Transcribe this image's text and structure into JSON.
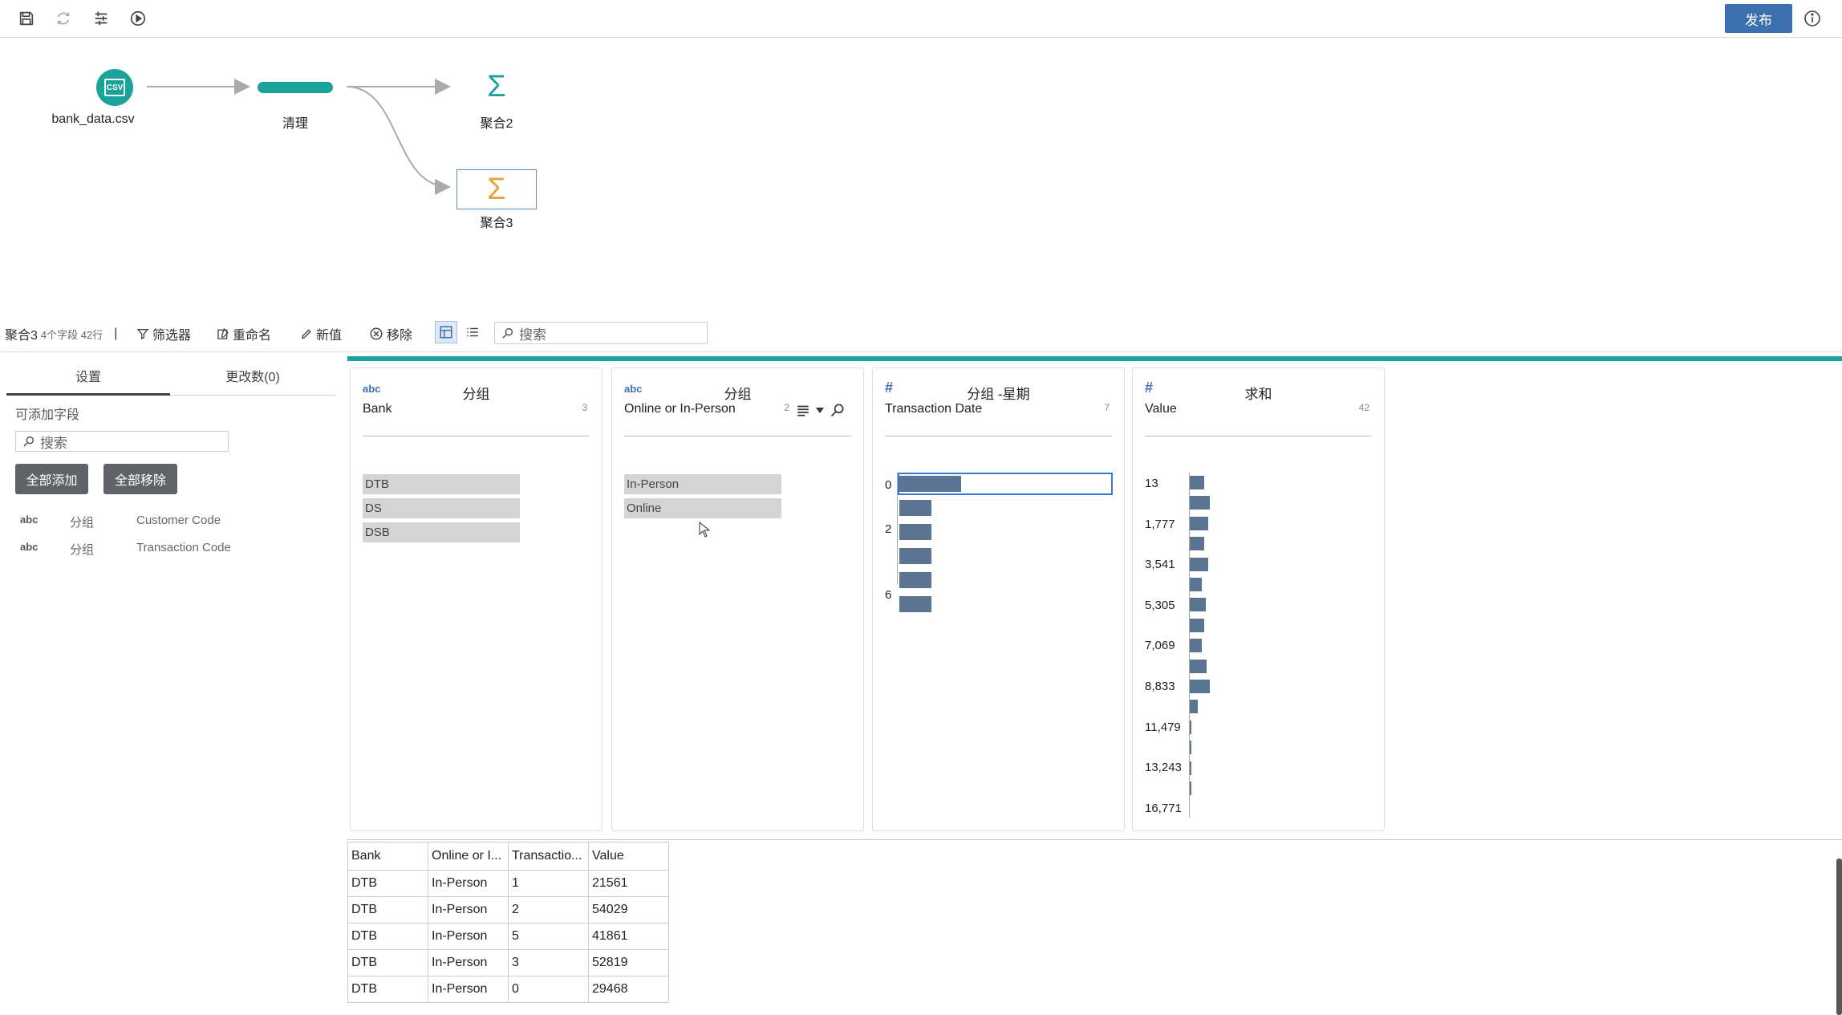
{
  "toolbar": {
    "icons": [
      "save-icon",
      "refresh-icon",
      "settings-sliders-icon",
      "play-icon"
    ],
    "publish_label": "发布"
  },
  "flow": {
    "nodes": [
      {
        "label": "bank_data.csv",
        "icon": "csv-icon"
      },
      {
        "label": "清理",
        "icon": "clean-bar"
      },
      {
        "label": "聚合2",
        "icon": "sigma-icon"
      },
      {
        "label": "聚合3",
        "icon": "sigma-icon"
      }
    ],
    "csv_badge": "CSV"
  },
  "step": {
    "name": "聚合3",
    "meta": "4个字段 42行",
    "separator": "|",
    "filter_label": "筛选器",
    "rename_label": "重命名",
    "new_label": "新值",
    "remove_label": "移除",
    "search_placeholder": "搜索"
  },
  "left_panel": {
    "tab_settings": "设置",
    "tab_changes": "更改数(0)",
    "addable_label": "可添加字段",
    "search_placeholder": "搜索",
    "add_all": "全部添加",
    "remove_all": "全部移除",
    "fields": [
      {
        "type": "abc",
        "role": "分组",
        "name": "Customer Code"
      },
      {
        "type": "abc",
        "role": "分组",
        "name": "Transaction Code"
      }
    ]
  },
  "cards": [
    {
      "type": "abc",
      "title": "分组",
      "name": "Bank",
      "count": "3",
      "values": [
        "DTB",
        "DS",
        "DSB"
      ]
    },
    {
      "type": "abc",
      "title": "分组",
      "name": "Online or In-Person",
      "count": "2",
      "values": [
        "In-Person",
        "Online"
      ]
    },
    {
      "type": "#",
      "title": "分组 -星期",
      "name": "Transaction Date",
      "count": "7",
      "axis_labels": [
        "0",
        "2",
        "6"
      ],
      "bar_levels": [
        1.0,
        0.52,
        0.52,
        0.52,
        0.52,
        0.52
      ]
    },
    {
      "type": "#",
      "title": "求和",
      "name": "Value",
      "count": "42",
      "axis_labels": [
        "13",
        "1,777",
        "3,541",
        "5,305",
        "7,069",
        "8,833",
        "11,479",
        "13,243",
        "16,771"
      ],
      "bar_levels": [
        0.7,
        1.0,
        0.9,
        0.7,
        0.9,
        0.6,
        0.8,
        0.7,
        0.6,
        0.85,
        1.0,
        0.4,
        0.08,
        0.08,
        0.08,
        0.08
      ]
    }
  ],
  "grid": {
    "columns": [
      "Bank",
      "Online or I...",
      "Transactio...",
      "Value"
    ],
    "rows": [
      [
        "DTB",
        "In-Person",
        "1",
        "21561"
      ],
      [
        "DTB",
        "In-Person",
        "2",
        "54029"
      ],
      [
        "DTB",
        "In-Person",
        "5",
        "41861"
      ],
      [
        "DTB",
        "In-Person",
        "3",
        "52819"
      ],
      [
        "DTB",
        "In-Person",
        "0",
        "29468"
      ]
    ]
  },
  "colors": {
    "accent": "#1aa39a",
    "publish": "#3b6fad",
    "bar": "#5a7491",
    "sigma_teal": "#1aa39a",
    "sigma_orange": "#e8a33d"
  }
}
